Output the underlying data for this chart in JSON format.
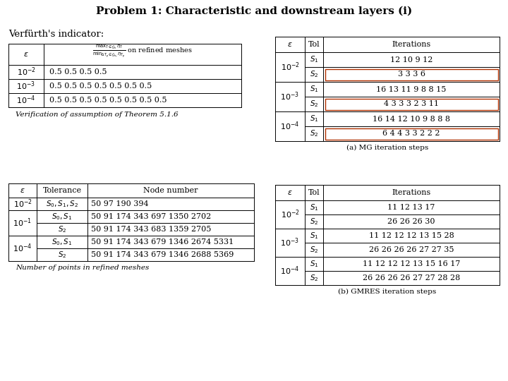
{
  "title": "Problem 1: Characteristic and downstream layers (i)",
  "title_fontsize": 11,
  "background_color": "#ffffff",
  "verfurth_label": "Verfürth's indicator:",
  "table1_rows": [
    [
      "10^{-2}",
      "0.5 0.5 0.5 0.5"
    ],
    [
      "10^{-3}",
      "0.5 0.5 0.5 0.5 0.5 0.5 0.5"
    ],
    [
      "10^{-4}",
      "0.5 0.5 0.5 0.5 0.5 0.5 0.5 0.5"
    ]
  ],
  "table1_caption": "Verification of assumption of Theorem 5.1.6",
  "table2_caption": "Number of points in refined meshes",
  "table3_caption": "(a) MG iteration steps",
  "table4_caption": "(b) GMRES iteration steps"
}
